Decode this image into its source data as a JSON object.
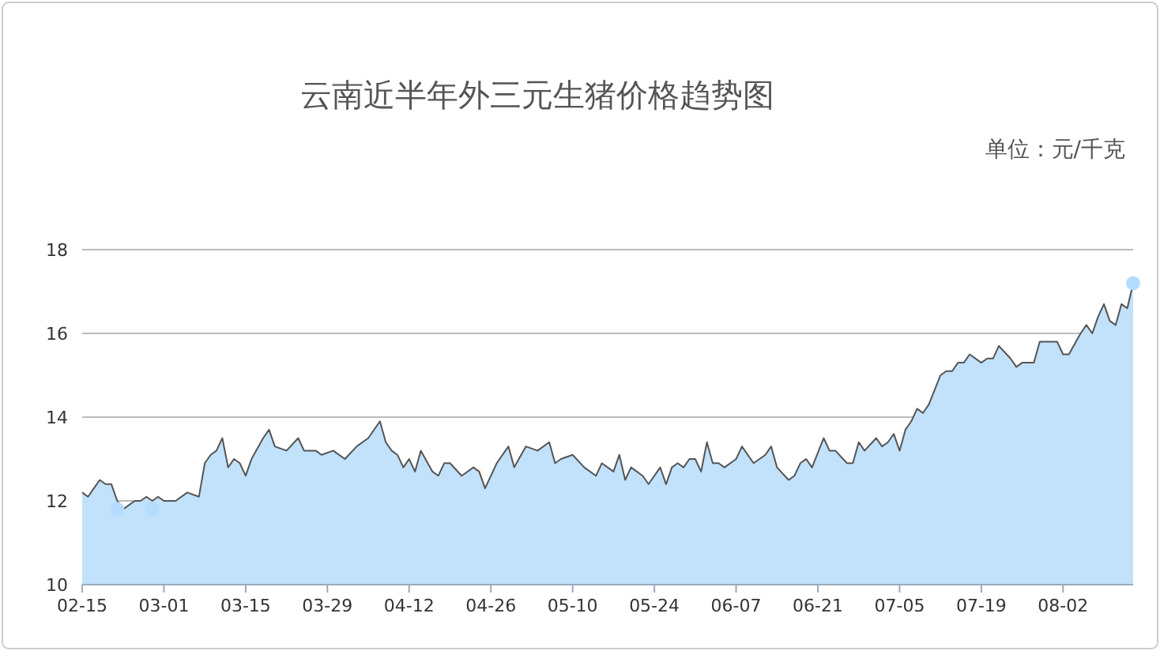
{
  "chart_data": {
    "type": "area",
    "title": "云南近半年外三元生猪价格趋势图",
    "annotations": [
      "单位：元/千克"
    ],
    "xlim": [
      "--02-15",
      "--08-14"
    ],
    "xticks": [
      {
        "value": "--02-15",
        "label": "02-15"
      },
      {
        "value": "--03-01",
        "label": "03-01"
      },
      {
        "value": "--03-15",
        "label": "03-15"
      },
      {
        "value": "--03-29",
        "label": "03-29"
      },
      {
        "value": "--04-12",
        "label": "04-12"
      },
      {
        "value": "--04-26",
        "label": "04-26"
      },
      {
        "value": "--05-10",
        "label": "05-10"
      },
      {
        "value": "--05-24",
        "label": "05-24"
      },
      {
        "value": "--06-07",
        "label": "06-07"
      },
      {
        "value": "--06-21",
        "label": "06-21"
      },
      {
        "value": "--07-05",
        "label": "07-05"
      },
      {
        "value": "--07-19",
        "label": "07-19"
      },
      {
        "value": "--08-02",
        "label": "08-02"
      }
    ],
    "ylim": [
      10,
      18
    ],
    "yticks": [
      10,
      12,
      14,
      16,
      18
    ],
    "grid": "y",
    "series": [
      {
        "color": "#c2e1fb",
        "x": [
          "--02-15",
          "--02-16",
          "--02-17",
          "--02-18",
          "--02-19",
          "--02-20",
          "--02-21",
          "--02-22",
          "--02-24",
          "--02-25",
          "--02-26",
          "--02-27",
          "--02-28",
          "--03-01",
          "--03-03",
          "--03-05",
          "--03-07",
          "--03-08",
          "--03-09",
          "--03-10",
          "--03-11",
          "--03-12",
          "--03-13",
          "--03-14",
          "--03-15",
          "--03-16",
          "--03-18",
          "--03-19",
          "--03-20",
          "--03-22",
          "--03-24",
          "--03-25",
          "--03-27",
          "--03-28",
          "--03-30",
          "--04-01",
          "--04-03",
          "--04-05",
          "--04-07",
          "--04-08",
          "--04-09",
          "--04-10",
          "--04-11",
          "--04-12",
          "--04-13",
          "--04-14",
          "--04-16",
          "--04-17",
          "--04-18",
          "--04-19",
          "--04-21",
          "--04-23",
          "--04-24",
          "--04-25",
          "--04-27",
          "--04-29",
          "--04-30",
          "--05-02",
          "--05-04",
          "--05-06",
          "--05-07",
          "--05-08",
          "--05-10",
          "--05-12",
          "--05-14",
          "--05-15",
          "--05-17",
          "--05-18",
          "--05-19",
          "--05-20",
          "--05-21",
          "--05-22",
          "--05-23",
          "--05-25",
          "--05-26",
          "--05-27",
          "--05-28",
          "--05-29",
          "--05-30",
          "--05-31",
          "--06-01",
          "--06-02",
          "--06-03",
          "--06-04",
          "--06-05",
          "--06-07",
          "--06-08",
          "--06-10",
          "--06-12",
          "--06-13",
          "--06-14",
          "--06-16",
          "--06-17",
          "--06-18",
          "--06-19",
          "--06-20",
          "--06-22",
          "--06-23",
          "--06-24",
          "--06-26",
          "--06-27",
          "--06-28",
          "--06-29",
          "--07-01",
          "--07-02",
          "--07-03",
          "--07-04",
          "--07-05",
          "--07-06",
          "--07-07",
          "--07-08",
          "--07-09",
          "--07-10",
          "--07-12",
          "--07-13",
          "--07-14",
          "--07-15",
          "--07-16",
          "--07-17",
          "--07-19",
          "--07-20",
          "--07-21",
          "--07-22",
          "--07-24",
          "--07-25",
          "--07-26",
          "--07-27",
          "--07-28",
          "--07-29",
          "--07-30",
          "--07-31",
          "--08-01",
          "--08-02",
          "--08-03",
          "--08-05",
          "--08-06",
          "--08-07",
          "--08-08",
          "--08-09",
          "--08-10",
          "--08-11",
          "--08-12",
          "--08-13",
          "--08-14"
        ],
        "values": [
          12.2,
          12.1,
          12.3,
          12.5,
          12.4,
          12.4,
          12.0,
          11.8,
          12.0,
          12.0,
          12.1,
          12.0,
          12.1,
          12.0,
          12.0,
          12.2,
          12.1,
          12.9,
          13.1,
          13.2,
          13.5,
          12.8,
          13.0,
          12.9,
          12.6,
          13.0,
          13.5,
          13.7,
          13.3,
          13.2,
          13.5,
          13.2,
          13.2,
          13.1,
          13.2,
          13.0,
          13.3,
          13.5,
          13.9,
          13.4,
          13.2,
          13.1,
          12.8,
          13.0,
          12.7,
          13.2,
          12.7,
          12.6,
          12.9,
          12.9,
          12.6,
          12.8,
          12.7,
          12.3,
          12.9,
          13.3,
          12.8,
          13.3,
          13.2,
          13.4,
          12.9,
          13.0,
          13.1,
          12.8,
          12.6,
          12.9,
          12.7,
          13.1,
          12.5,
          12.8,
          12.7,
          12.6,
          12.4,
          12.8,
          12.4,
          12.8,
          12.9,
          12.8,
          13.0,
          13.0,
          12.7,
          13.4,
          12.9,
          12.9,
          12.8,
          13.0,
          13.3,
          12.9,
          13.1,
          13.3,
          12.8,
          12.5,
          12.6,
          12.9,
          13.0,
          12.8,
          13.5,
          13.2,
          13.2,
          12.9,
          12.9,
          13.4,
          13.2,
          13.5,
          13.3,
          13.4,
          13.6,
          13.2,
          13.7,
          13.9,
          14.2,
          14.1,
          14.3,
          15.0,
          15.1,
          15.1,
          15.3,
          15.3,
          15.5,
          15.3,
          15.4,
          15.4,
          15.7,
          15.4,
          15.2,
          15.3,
          15.3,
          15.3,
          15.8,
          15.8,
          15.8,
          15.8,
          15.5,
          15.5,
          16.0,
          16.2,
          16.0,
          16.4,
          16.7,
          16.3,
          16.2,
          16.7,
          16.6,
          17.2
        ]
      },
      {
        "type": "scatter",
        "color": "#b3dcff",
        "marker": "circle",
        "x": [
          "--02-21",
          "--02-27",
          "--08-14"
        ],
        "values": [
          11.8,
          11.8,
          17.2
        ]
      }
    ]
  }
}
